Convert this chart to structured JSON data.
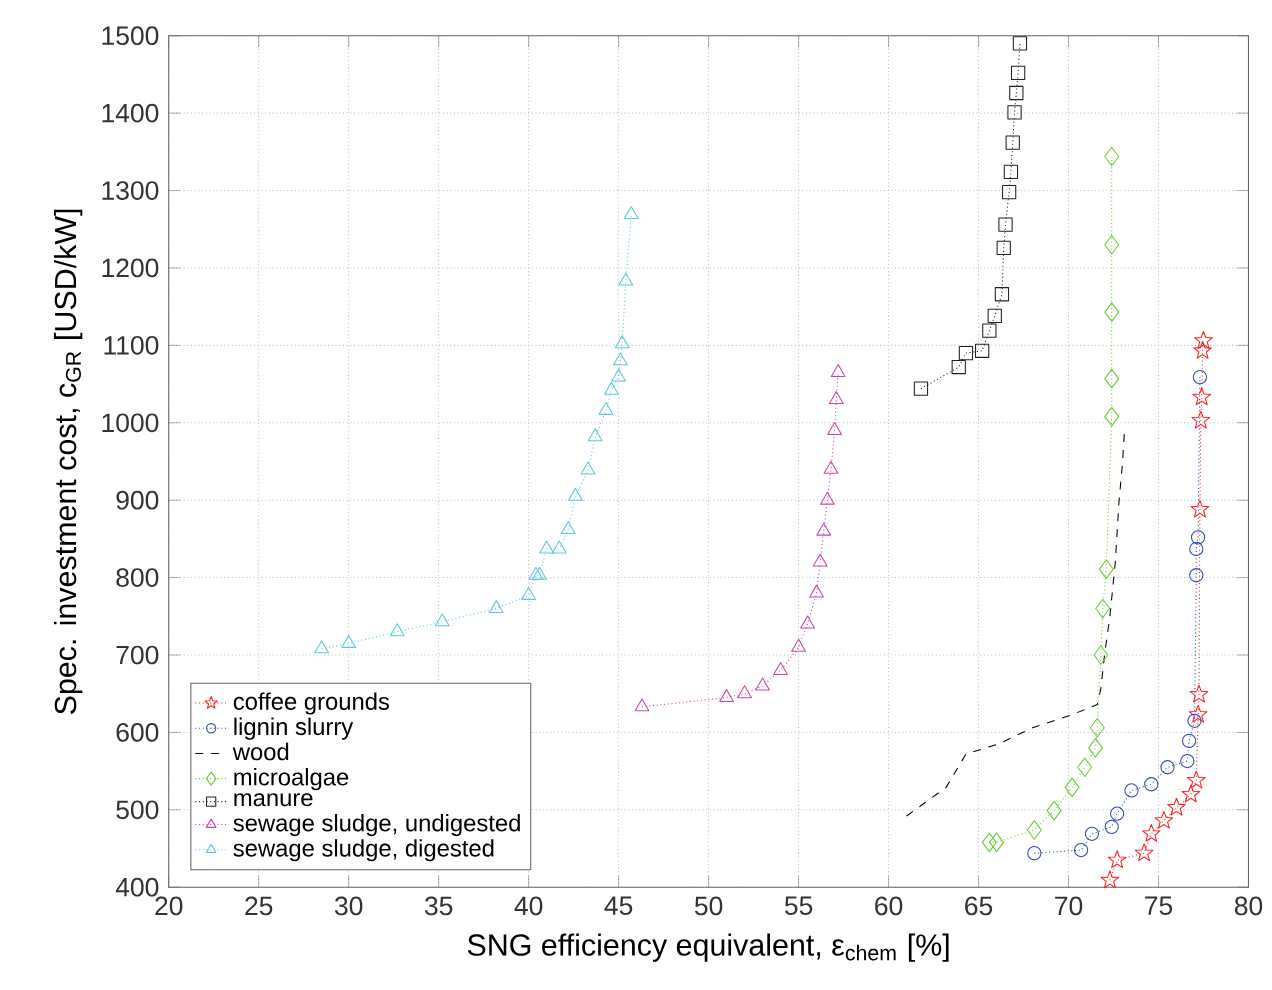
{
  "chart_data": {
    "type": "line",
    "xlabel": "SNG efficiency equivalent,  ε$_{chem}$ [%]",
    "ylabel": "Spec. investment cost,  c$_{GR}$ [USD/kW]",
    "xlim": [
      20,
      80
    ],
    "ylim": [
      400,
      1500
    ],
    "xticks": [
      20,
      25,
      30,
      35,
      40,
      45,
      50,
      55,
      60,
      65,
      70,
      75,
      80
    ],
    "yticks": [
      400,
      500,
      600,
      700,
      800,
      900,
      1000,
      1100,
      1200,
      1300,
      1400,
      1500
    ],
    "grid": true,
    "legend": "bottom left",
    "series": [
      {
        "name": "coffee grounds",
        "color": "#ff2020",
        "marker": "star",
        "line_style": "dotted",
        "x": [
          72.3,
          72.7,
          74.2,
          74.6,
          75.3,
          76.0,
          76.8,
          77.1,
          77.2,
          77.25,
          77.3,
          77.35,
          77.4,
          77.45,
          77.5
        ],
        "values": [
          409,
          435,
          444,
          469,
          486,
          503,
          520,
          538,
          623,
          649,
          888,
          1003,
          1033,
          1093,
          1106
        ]
      },
      {
        "name": "lignin slurry",
        "color": "#2a4bc0",
        "marker": "circle",
        "line_style": "dotted",
        "x": [
          68.1,
          70.7,
          71.3,
          72.4,
          72.7,
          73.5,
          74.6,
          75.5,
          76.6,
          76.7,
          77.0,
          77.1,
          77.1,
          77.2,
          77.3
        ],
        "values": [
          444,
          448,
          469,
          478,
          495,
          525,
          533,
          555,
          563,
          589,
          615,
          803,
          837,
          852,
          1059
        ]
      },
      {
        "name": "wood",
        "color": "#000000",
        "marker": "none",
        "line_style": "dashed",
        "x": [
          61.0,
          63.2,
          64.3,
          66.1,
          68.0,
          70.2,
          71.6,
          71.8,
          72.0,
          72.3,
          72.6,
          72.8,
          73.0,
          73.1
        ],
        "values": [
          492,
          529,
          572,
          585,
          606,
          623,
          636,
          657,
          700,
          750,
          820,
          897,
          948,
          986
        ]
      },
      {
        "name": "microalgae",
        "color": "#66cc33",
        "marker": "diamond",
        "line_style": "dotted",
        "x": [
          65.6,
          66.0,
          68.1,
          69.2,
          70.2,
          70.9,
          71.5,
          71.6,
          71.8,
          71.9,
          72.1,
          72.4,
          72.4,
          72.4,
          72.4,
          72.4
        ],
        "values": [
          458,
          458,
          474,
          499,
          529,
          555,
          580,
          606,
          700,
          760,
          811,
          1008,
          1057,
          1143,
          1230,
          1344
        ]
      },
      {
        "name": "manure",
        "color": "#222222",
        "marker": "square",
        "line_style": "dotted",
        "x": [
          61.8,
          63.9,
          64.3,
          65.2,
          65.6,
          65.9,
          66.3,
          66.4,
          66.5,
          66.7,
          66.8,
          66.9,
          67.0,
          67.1,
          67.2,
          67.3
        ],
        "values": [
          1044,
          1072,
          1090,
          1093,
          1119,
          1138,
          1166,
          1226,
          1256,
          1298,
          1324,
          1362,
          1401,
          1426,
          1452,
          1490
        ]
      },
      {
        "name": "sewage sludge, undigested",
        "color": "#cc44aa",
        "marker": "triangle",
        "line_style": "dotted",
        "x": [
          46.3,
          51.0,
          52.0,
          53.0,
          54.0,
          55.0,
          55.5,
          56.0,
          56.2,
          56.4,
          56.6,
          56.8,
          57.0,
          57.1,
          57.2
        ],
        "values": [
          633,
          645,
          650,
          660,
          680,
          710,
          740,
          780,
          820,
          860,
          900,
          940,
          990,
          1030,
          1065
        ]
      },
      {
        "name": "sewage sludge, digested",
        "color": "#5bc8dc",
        "marker": "triangle_down",
        "line_style": "dotted",
        "x": [
          28.5,
          30.0,
          32.7,
          35.2,
          38.2,
          40.0,
          40.4,
          40.6,
          41.0,
          41.7,
          42.2,
          42.6,
          43.3,
          43.7,
          44.3,
          44.6,
          45.0,
          45.1,
          45.2,
          45.4,
          45.7
        ],
        "values": [
          708,
          715,
          730,
          743,
          760,
          777,
          803,
          803,
          837,
          837,
          862,
          905,
          939,
          982,
          1016,
          1042,
          1059,
          1080,
          1102,
          1183,
          1269
        ]
      }
    ]
  }
}
